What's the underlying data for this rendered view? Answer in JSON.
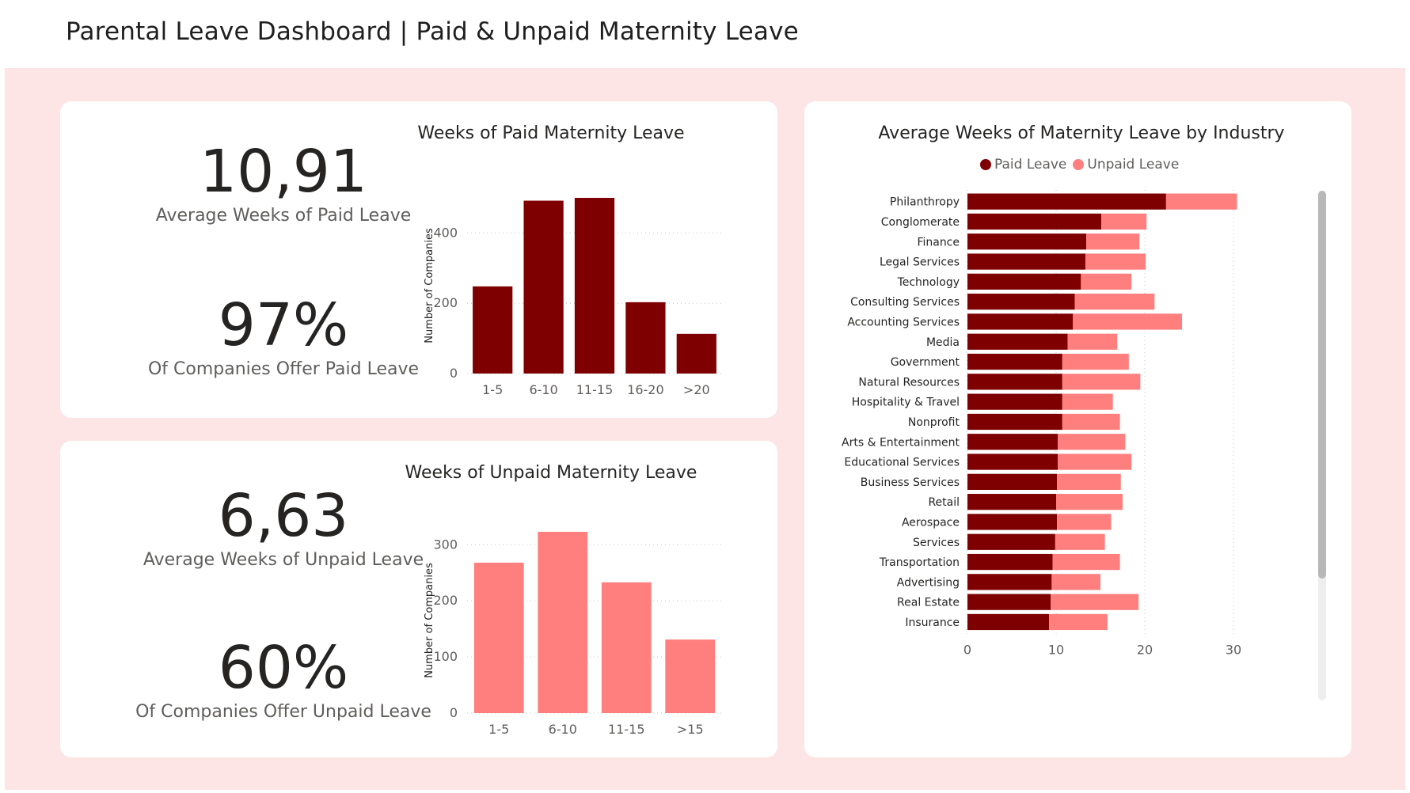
{
  "page": {
    "title": "Parental Leave Dashboard | Paid & Unpaid Maternity Leave"
  },
  "colors": {
    "canvas": "#fde5e5",
    "paid": "#7f0000",
    "unpaid": "#ff7f7f",
    "card": "#ffffff"
  },
  "paid_kpis": {
    "avg_weeks": {
      "value": "10,91",
      "label": "Average Weeks of Paid Leave"
    },
    "pct_companies": {
      "value": "97%",
      "label": "Of Companies Offer Paid Leave"
    }
  },
  "unpaid_kpis": {
    "avg_weeks": {
      "value": "6,63",
      "label": "Average Weeks of Unpaid Leave"
    },
    "pct_companies": {
      "value": "60%",
      "label": "Of Companies Offer Unpaid Leave"
    }
  },
  "chart_data": [
    {
      "type": "bar",
      "title": "Weeks of Paid Maternity Leave",
      "categories": [
        "1-5",
        "6-10",
        "11-15",
        "16-20",
        ">20"
      ],
      "values": [
        248,
        492,
        500,
        203,
        113
      ],
      "ylabel": "Number of Companies",
      "xlabel": "",
      "ylim": [
        0,
        500
      ],
      "yticks": [
        0,
        200,
        400
      ],
      "color": "#7f0000",
      "grid": true
    },
    {
      "type": "bar",
      "title": "Weeks of Unpaid Maternity Leave",
      "categories": [
        "1-5",
        "6-10",
        "11-15",
        ">15"
      ],
      "values": [
        268,
        323,
        233,
        131
      ],
      "ylabel": "Number of Companies",
      "xlabel": "",
      "ylim": [
        0,
        330
      ],
      "yticks": [
        0,
        100,
        200,
        300
      ],
      "color": "#ff7f7f",
      "grid": true
    },
    {
      "type": "bar",
      "orientation": "horizontal",
      "stacked": true,
      "title": "Average Weeks of Maternity Leave by Industry",
      "legend": "top-center",
      "categories": [
        "Philanthropy",
        "Conglomerate",
        "Finance",
        "Legal Services",
        "Technology",
        "Consulting Services",
        "Accounting Services",
        "Media",
        "Government",
        "Natural Resources",
        "Hospitality & Travel",
        "Nonprofit",
        "Arts & Entertainment",
        "Educational Services",
        "Business Services",
        "Retail",
        "Aerospace",
        "Services",
        "Transportation",
        "Advertising",
        "Real Estate",
        "Insurance"
      ],
      "series": [
        {
          "name": "Paid Leave",
          "color": "#7f0000",
          "values": [
            22.4,
            15.1,
            13.4,
            13.3,
            12.8,
            12.1,
            11.9,
            11.3,
            10.7,
            10.7,
            10.7,
            10.7,
            10.2,
            10.2,
            10.1,
            10.0,
            10.1,
            9.9,
            9.6,
            9.5,
            9.4,
            9.2
          ]
        },
        {
          "name": "Unpaid Leave",
          "color": "#ff7f7f",
          "values": [
            8.0,
            5.1,
            6.0,
            6.8,
            5.7,
            9.0,
            12.3,
            5.6,
            7.5,
            8.8,
            5.7,
            6.5,
            7.6,
            8.3,
            7.2,
            7.5,
            6.1,
            5.6,
            7.6,
            5.5,
            9.9,
            6.6
          ]
        }
      ],
      "xlim": [
        0,
        30
      ],
      "xticks": [
        0,
        10,
        20,
        30
      ],
      "grid": true
    }
  ]
}
